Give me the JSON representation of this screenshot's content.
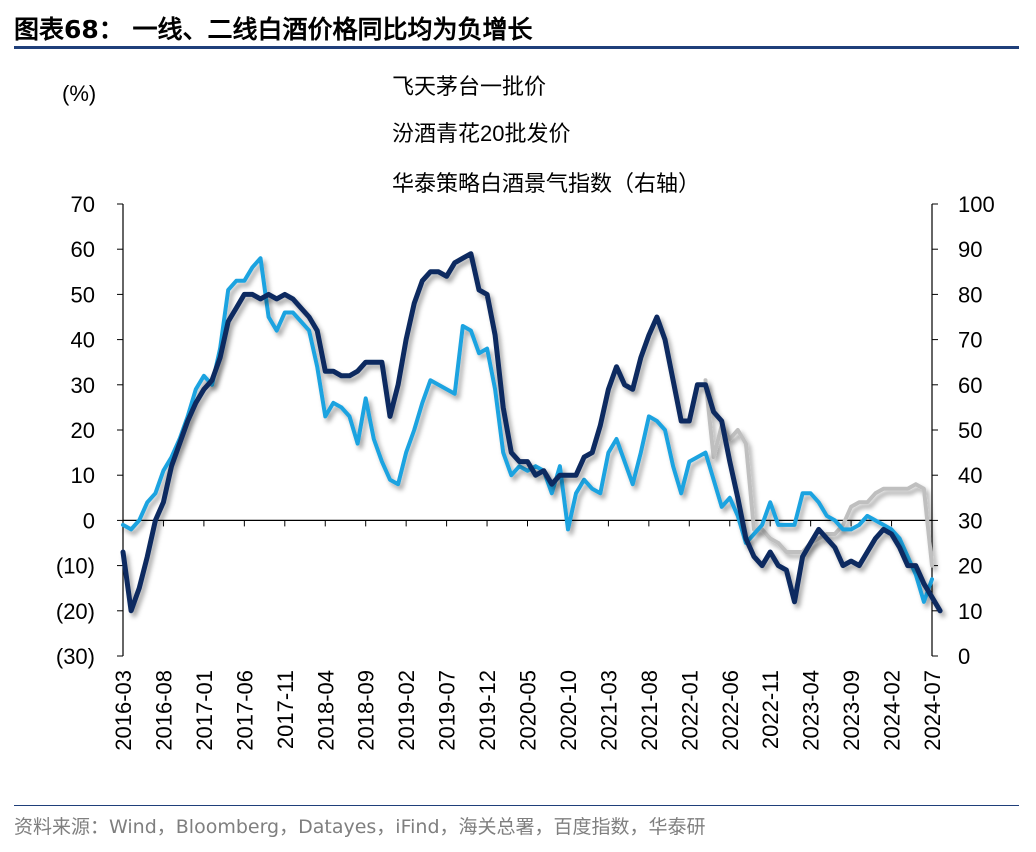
{
  "title": "图表68：  一线、二线白酒价格同比均为负增长",
  "source": "资料来源：Wind，Bloomberg，Datayes，iFind，海关总署，百度指数，华泰研",
  "chart_data": {
    "type": "line",
    "ylabel_left": "(%)",
    "ylim_left": [
      -30,
      70
    ],
    "ylim_right": [
      0,
      100
    ],
    "yticks_left": [
      "70",
      "60",
      "50",
      "40",
      "30",
      "20",
      "10",
      "0",
      "(10)",
      "(20)",
      "(30)"
    ],
    "yticks_right": [
      "100",
      "90",
      "80",
      "70",
      "60",
      "50",
      "40",
      "30",
      "20",
      "10",
      "0"
    ],
    "x_start": "2016-03",
    "x_end": "2024-07",
    "xticks": [
      "2016-03",
      "2016-08",
      "2017-01",
      "2017-06",
      "2017-11",
      "2018-04",
      "2018-09",
      "2019-02",
      "2019-07",
      "2019-12",
      "2020-05",
      "2020-10",
      "2021-03",
      "2021-08",
      "2022-01",
      "2022-06",
      "2022-11",
      "2023-04",
      "2023-09",
      "2024-02",
      "2024-07"
    ],
    "grid": false,
    "legend_position": "top-center",
    "series": [
      {
        "name": "飞天茅台一批价",
        "axis": "left",
        "color": "#1aa3e0",
        "data": [
          [
            "2016-03",
            -1
          ],
          [
            "2016-04",
            -2
          ],
          [
            "2016-05",
            0
          ],
          [
            "2016-06",
            4
          ],
          [
            "2016-07",
            6
          ],
          [
            "2016-08",
            11
          ],
          [
            "2016-09",
            14
          ],
          [
            "2016-10",
            18
          ],
          [
            "2016-11",
            23
          ],
          [
            "2016-12",
            29
          ],
          [
            "2017-01",
            32
          ],
          [
            "2017-02",
            30
          ],
          [
            "2017-03",
            38
          ],
          [
            "2017-04",
            51
          ],
          [
            "2017-05",
            53
          ],
          [
            "2017-06",
            53
          ],
          [
            "2017-07",
            56
          ],
          [
            "2017-08",
            58
          ],
          [
            "2017-09",
            45
          ],
          [
            "2017-10",
            42
          ],
          [
            "2017-11",
            46
          ],
          [
            "2017-12",
            46
          ],
          [
            "2018-01",
            44
          ],
          [
            "2018-02",
            42
          ],
          [
            "2018-03",
            34
          ],
          [
            "2018-04",
            23
          ],
          [
            "2018-05",
            26
          ],
          [
            "2018-06",
            25
          ],
          [
            "2018-07",
            23
          ],
          [
            "2018-08",
            17
          ],
          [
            "2018-09",
            27
          ],
          [
            "2018-10",
            18
          ],
          [
            "2018-11",
            13
          ],
          [
            "2018-12",
            9
          ],
          [
            "2019-01",
            8
          ],
          [
            "2019-02",
            15
          ],
          [
            "2019-03",
            20
          ],
          [
            "2019-04",
            26
          ],
          [
            "2019-05",
            31
          ],
          [
            "2019-06",
            30
          ],
          [
            "2019-07",
            29
          ],
          [
            "2019-08",
            28
          ],
          [
            "2019-09",
            43
          ],
          [
            "2019-10",
            42
          ],
          [
            "2019-11",
            37
          ],
          [
            "2019-12",
            38
          ],
          [
            "2020-01",
            29
          ],
          [
            "2020-02",
            15
          ],
          [
            "2020-03",
            10
          ],
          [
            "2020-04",
            12
          ],
          [
            "2020-05",
            11
          ],
          [
            "2020-06",
            12
          ],
          [
            "2020-07",
            11
          ],
          [
            "2020-08",
            6
          ],
          [
            "2020-09",
            12
          ],
          [
            "2020-10",
            -2
          ],
          [
            "2020-11",
            6
          ],
          [
            "2020-12",
            9
          ],
          [
            "2021-01",
            7
          ],
          [
            "2021-02",
            6
          ],
          [
            "2021-03",
            15
          ],
          [
            "2021-04",
            18
          ],
          [
            "2021-05",
            13
          ],
          [
            "2021-06",
            8
          ],
          [
            "2021-07",
            15
          ],
          [
            "2021-08",
            23
          ],
          [
            "2021-09",
            22
          ],
          [
            "2021-10",
            20
          ],
          [
            "2021-11",
            12
          ],
          [
            "2021-12",
            6
          ],
          [
            "2022-01",
            13
          ],
          [
            "2022-02",
            14
          ],
          [
            "2022-03",
            15
          ],
          [
            "2022-04",
            9
          ],
          [
            "2022-05",
            3
          ],
          [
            "2022-06",
            5
          ],
          [
            "2022-07",
            1
          ],
          [
            "2022-08",
            -5
          ],
          [
            "2022-09",
            -3
          ],
          [
            "2022-10",
            -1
          ],
          [
            "2022-11",
            4
          ],
          [
            "2022-12",
            -1
          ],
          [
            "2023-01",
            -1
          ],
          [
            "2023-02",
            -1
          ],
          [
            "2023-03",
            6
          ],
          [
            "2023-04",
            6
          ],
          [
            "2023-05",
            4
          ],
          [
            "2023-06",
            1
          ],
          [
            "2023-07",
            0
          ],
          [
            "2023-08",
            -2
          ],
          [
            "2023-09",
            -2
          ],
          [
            "2023-10",
            -1
          ],
          [
            "2023-11",
            1
          ],
          [
            "2023-12",
            0
          ],
          [
            "2024-01",
            -1
          ],
          [
            "2024-02",
            -2
          ],
          [
            "2024-03",
            -4
          ],
          [
            "2024-04",
            -8
          ],
          [
            "2024-05",
            -12
          ],
          [
            "2024-06",
            -18
          ],
          [
            "2024-07",
            -13
          ]
        ]
      },
      {
        "name": "汾酒青花20批发价",
        "axis": "left",
        "color": "#bfbfbf",
        "data": [
          [
            "2022-03",
            31
          ],
          [
            "2022-04",
            14
          ],
          [
            "2022-05",
            21
          ],
          [
            "2022-06",
            18
          ],
          [
            "2022-07",
            20
          ],
          [
            "2022-08",
            17
          ],
          [
            "2022-09",
            -2
          ],
          [
            "2022-10",
            -2
          ],
          [
            "2022-11",
            -4
          ],
          [
            "2022-12",
            -5
          ],
          [
            "2023-01",
            -7
          ],
          [
            "2023-02",
            -7
          ],
          [
            "2023-03",
            -7
          ],
          [
            "2023-04",
            -5
          ],
          [
            "2023-05",
            -4
          ],
          [
            "2023-06",
            -3
          ],
          [
            "2023-07",
            -3
          ],
          [
            "2023-08",
            -1
          ],
          [
            "2023-09",
            3
          ],
          [
            "2023-10",
            4
          ],
          [
            "2023-11",
            4
          ],
          [
            "2023-12",
            6
          ],
          [
            "2024-01",
            7
          ],
          [
            "2024-02",
            7
          ],
          [
            "2024-03",
            7
          ],
          [
            "2024-04",
            7
          ],
          [
            "2024-05",
            8
          ],
          [
            "2024-06",
            7
          ],
          [
            "2024-07",
            -10
          ]
        ]
      },
      {
        "name": "华泰策略白酒景气指数（右轴）",
        "axis": "right",
        "color": "#0c2a60",
        "data": [
          [
            "2016-03",
            23
          ],
          [
            "2016-04",
            10
          ],
          [
            "2016-05",
            15
          ],
          [
            "2016-06",
            22
          ],
          [
            "2016-07",
            30
          ],
          [
            "2016-08",
            34
          ],
          [
            "2016-09",
            42
          ],
          [
            "2016-10",
            47
          ],
          [
            "2016-11",
            52
          ],
          [
            "2016-12",
            56
          ],
          [
            "2017-01",
            59
          ],
          [
            "2017-02",
            61
          ],
          [
            "2017-03",
            66
          ],
          [
            "2017-04",
            74
          ],
          [
            "2017-05",
            77
          ],
          [
            "2017-06",
            80
          ],
          [
            "2017-07",
            80
          ],
          [
            "2017-08",
            79
          ],
          [
            "2017-09",
            80
          ],
          [
            "2017-10",
            79
          ],
          [
            "2017-11",
            80
          ],
          [
            "2017-12",
            79
          ],
          [
            "2018-01",
            77
          ],
          [
            "2018-02",
            75
          ],
          [
            "2018-03",
            72
          ],
          [
            "2018-04",
            63
          ],
          [
            "2018-05",
            63
          ],
          [
            "2018-06",
            62
          ],
          [
            "2018-07",
            62
          ],
          [
            "2018-08",
            63
          ],
          [
            "2018-09",
            65
          ],
          [
            "2018-10",
            65
          ],
          [
            "2018-11",
            65
          ],
          [
            "2018-12",
            53
          ],
          [
            "2019-01",
            60
          ],
          [
            "2019-02",
            70
          ],
          [
            "2019-03",
            78
          ],
          [
            "2019-04",
            83
          ],
          [
            "2019-05",
            85
          ],
          [
            "2019-06",
            85
          ],
          [
            "2019-07",
            84
          ],
          [
            "2019-08",
            87
          ],
          [
            "2019-09",
            88
          ],
          [
            "2019-10",
            89
          ],
          [
            "2019-11",
            81
          ],
          [
            "2019-12",
            80
          ],
          [
            "2020-01",
            71
          ],
          [
            "2020-02",
            55
          ],
          [
            "2020-03",
            45
          ],
          [
            "2020-04",
            43
          ],
          [
            "2020-05",
            43
          ],
          [
            "2020-06",
            40
          ],
          [
            "2020-07",
            41
          ],
          [
            "2020-08",
            38
          ],
          [
            "2020-09",
            40
          ],
          [
            "2020-10",
            40
          ],
          [
            "2020-11",
            40
          ],
          [
            "2020-12",
            44
          ],
          [
            "2021-01",
            45
          ],
          [
            "2021-02",
            51
          ],
          [
            "2021-03",
            59
          ],
          [
            "2021-04",
            64
          ],
          [
            "2021-05",
            60
          ],
          [
            "2021-06",
            59
          ],
          [
            "2021-07",
            66
          ],
          [
            "2021-08",
            71
          ],
          [
            "2021-09",
            75
          ],
          [
            "2021-10",
            70
          ],
          [
            "2021-11",
            61
          ],
          [
            "2021-12",
            52
          ],
          [
            "2022-01",
            52
          ],
          [
            "2022-02",
            60
          ],
          [
            "2022-03",
            60
          ],
          [
            "2022-04",
            54
          ],
          [
            "2022-05",
            52
          ],
          [
            "2022-06",
            43
          ],
          [
            "2022-07",
            35
          ],
          [
            "2022-08",
            26
          ],
          [
            "2022-09",
            22
          ],
          [
            "2022-10",
            20
          ],
          [
            "2022-11",
            23
          ],
          [
            "2022-12",
            20
          ],
          [
            "2023-01",
            19
          ],
          [
            "2023-02",
            12
          ],
          [
            "2023-03",
            22
          ],
          [
            "2023-04",
            25
          ],
          [
            "2023-05",
            28
          ],
          [
            "2023-06",
            26
          ],
          [
            "2023-07",
            24
          ],
          [
            "2023-08",
            20
          ],
          [
            "2023-09",
            21
          ],
          [
            "2023-10",
            20
          ],
          [
            "2023-11",
            23
          ],
          [
            "2023-12",
            26
          ],
          [
            "2024-01",
            28
          ],
          [
            "2024-02",
            27
          ],
          [
            "2024-03",
            24
          ],
          [
            "2024-04",
            20
          ],
          [
            "2024-05",
            20
          ],
          [
            "2024-06",
            16
          ],
          [
            "2024-07",
            13
          ],
          [
            "2024-08",
            10
          ]
        ]
      }
    ]
  }
}
